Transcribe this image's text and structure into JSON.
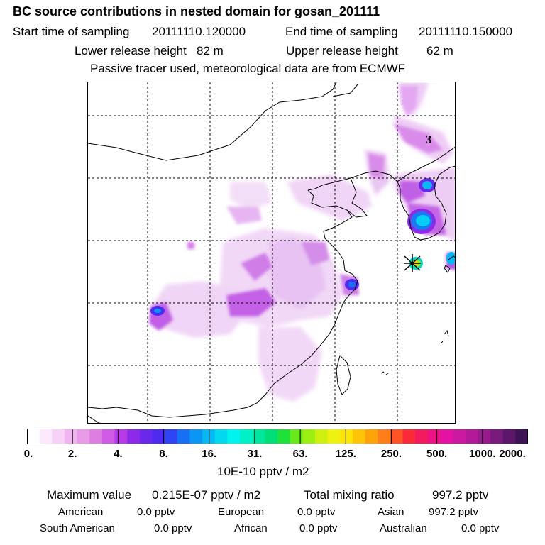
{
  "header": {
    "title": "BC  source contributions in nested domain for gosan_201111",
    "start_label": "Start time of sampling",
    "start_value": "20111110.120000",
    "end_label": "End time of sampling",
    "end_value": "20111110.150000",
    "lower_label": "Lower release height",
    "lower_value": "82 m",
    "upper_label": "Upper release height",
    "upper_value": "62 m",
    "note": "Passive tracer used, meteorological data are from ECMWF"
  },
  "map": {
    "marker_label": "3",
    "receptor": "gosan"
  },
  "colorbar": {
    "colors": [
      "#ffffff",
      "#fbe8fb",
      "#f7d2f7",
      "#f0b5f0",
      "#e89ae8",
      "#de7ee0",
      "#cf5ae5",
      "#b93ae8",
      "#8d2ae8",
      "#6a28ea",
      "#4d2cf0",
      "#2f45f5",
      "#1670f3",
      "#0b95f4",
      "#05b8f4",
      "#02d8f0",
      "#00f3ee",
      "#00f0c8",
      "#00e69e",
      "#00de78",
      "#1ee23a",
      "#66e81a",
      "#9def12",
      "#cdf010",
      "#eff20e",
      "#ffe408",
      "#ffc408",
      "#ffa20b",
      "#ff7e1a",
      "#ff5426",
      "#fa2a38",
      "#f31a5e",
      "#ef1285",
      "#e412a2",
      "#cc1aa0",
      "#b21a98",
      "#961a8c",
      "#7a1a7c",
      "#5c166a",
      "#3f1256"
    ],
    "tick_labels": [
      "0.",
      "2.",
      "4.",
      "8.",
      "16.",
      "31.",
      "63.",
      "125.",
      "250.",
      "500.",
      "1000.",
      "2000."
    ],
    "units": "10E-10 pptv / m2"
  },
  "summary": {
    "max_label": "Maximum value",
    "max_value": "0.215E-07 pptv / m2",
    "total_label": "Total mixing ratio",
    "total_value": "997.2 pptv",
    "american_label": "American",
    "american_value": "0.0 pptv",
    "european_label": "European",
    "european_value": "0.0 pptv",
    "asian_label": "Asian",
    "asian_value": "997.2 pptv",
    "south_american_label": "South American",
    "south_american_value": "0.0 pptv",
    "african_label": "African",
    "african_value": "0.0 pptv",
    "australian_label": "Australian",
    "australian_value": "0.0 pptv"
  }
}
